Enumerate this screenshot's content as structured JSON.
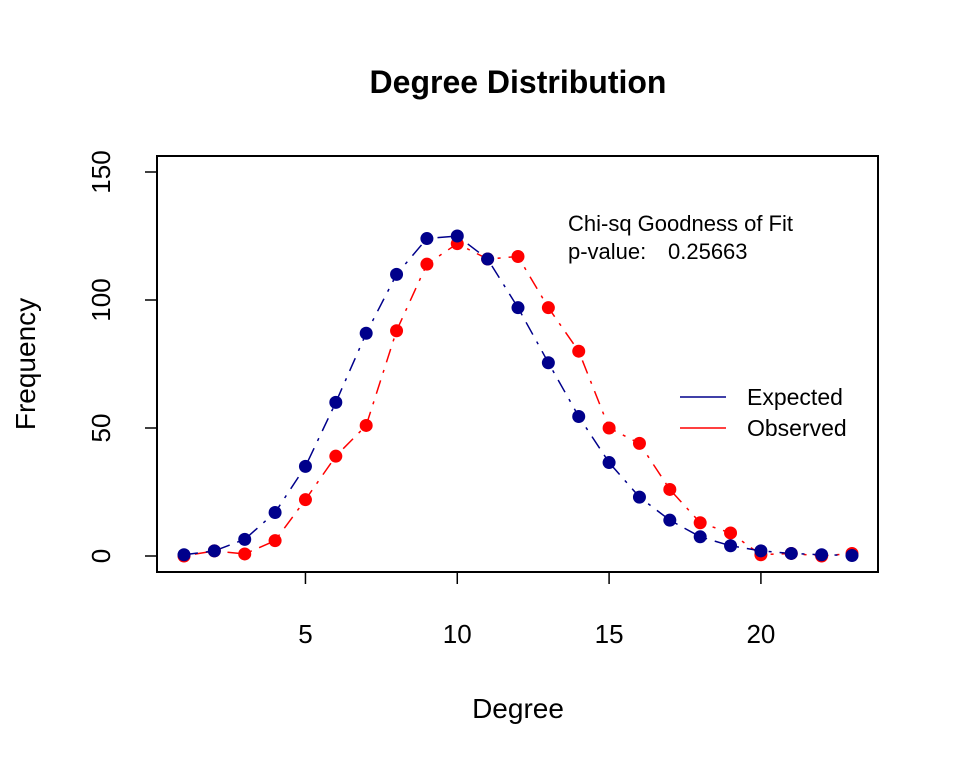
{
  "chart_data": {
    "type": "line",
    "title": "Degree Distribution",
    "xlabel": "Degree",
    "ylabel": "Frequency",
    "xlim": [
      1,
      23
    ],
    "ylim": [
      0,
      150
    ],
    "x_ticks": [
      5,
      10,
      15,
      20
    ],
    "y_ticks": [
      0,
      50,
      100,
      150
    ],
    "x": [
      1,
      2,
      3,
      4,
      5,
      6,
      7,
      8,
      9,
      10,
      11,
      12,
      13,
      14,
      15,
      16,
      17,
      18,
      19,
      20,
      21,
      22,
      23
    ],
    "series": [
      {
        "name": "Expected",
        "color": "#00008B",
        "values": [
          0.5,
          2,
          6.5,
          17,
          35,
          60,
          87,
          110,
          124,
          125,
          116,
          97,
          75.5,
          54.5,
          36.5,
          23,
          14,
          7.5,
          4,
          2,
          1,
          0.5,
          0.2
        ]
      },
      {
        "name": "Observed",
        "color": "#FF0000",
        "values": [
          0,
          2,
          0.8,
          6,
          22,
          39,
          51,
          88,
          114,
          122,
          116,
          117,
          97,
          80,
          50,
          44,
          26,
          13,
          9,
          0.5,
          1,
          0,
          1
        ]
      }
    ],
    "legend": {
      "position": "right",
      "entries": [
        "Expected",
        "Observed"
      ]
    },
    "annotation": {
      "line1": "Chi-sq Goodness of Fit",
      "label": "p-value:",
      "value": "0.25663"
    },
    "grid": false
  }
}
